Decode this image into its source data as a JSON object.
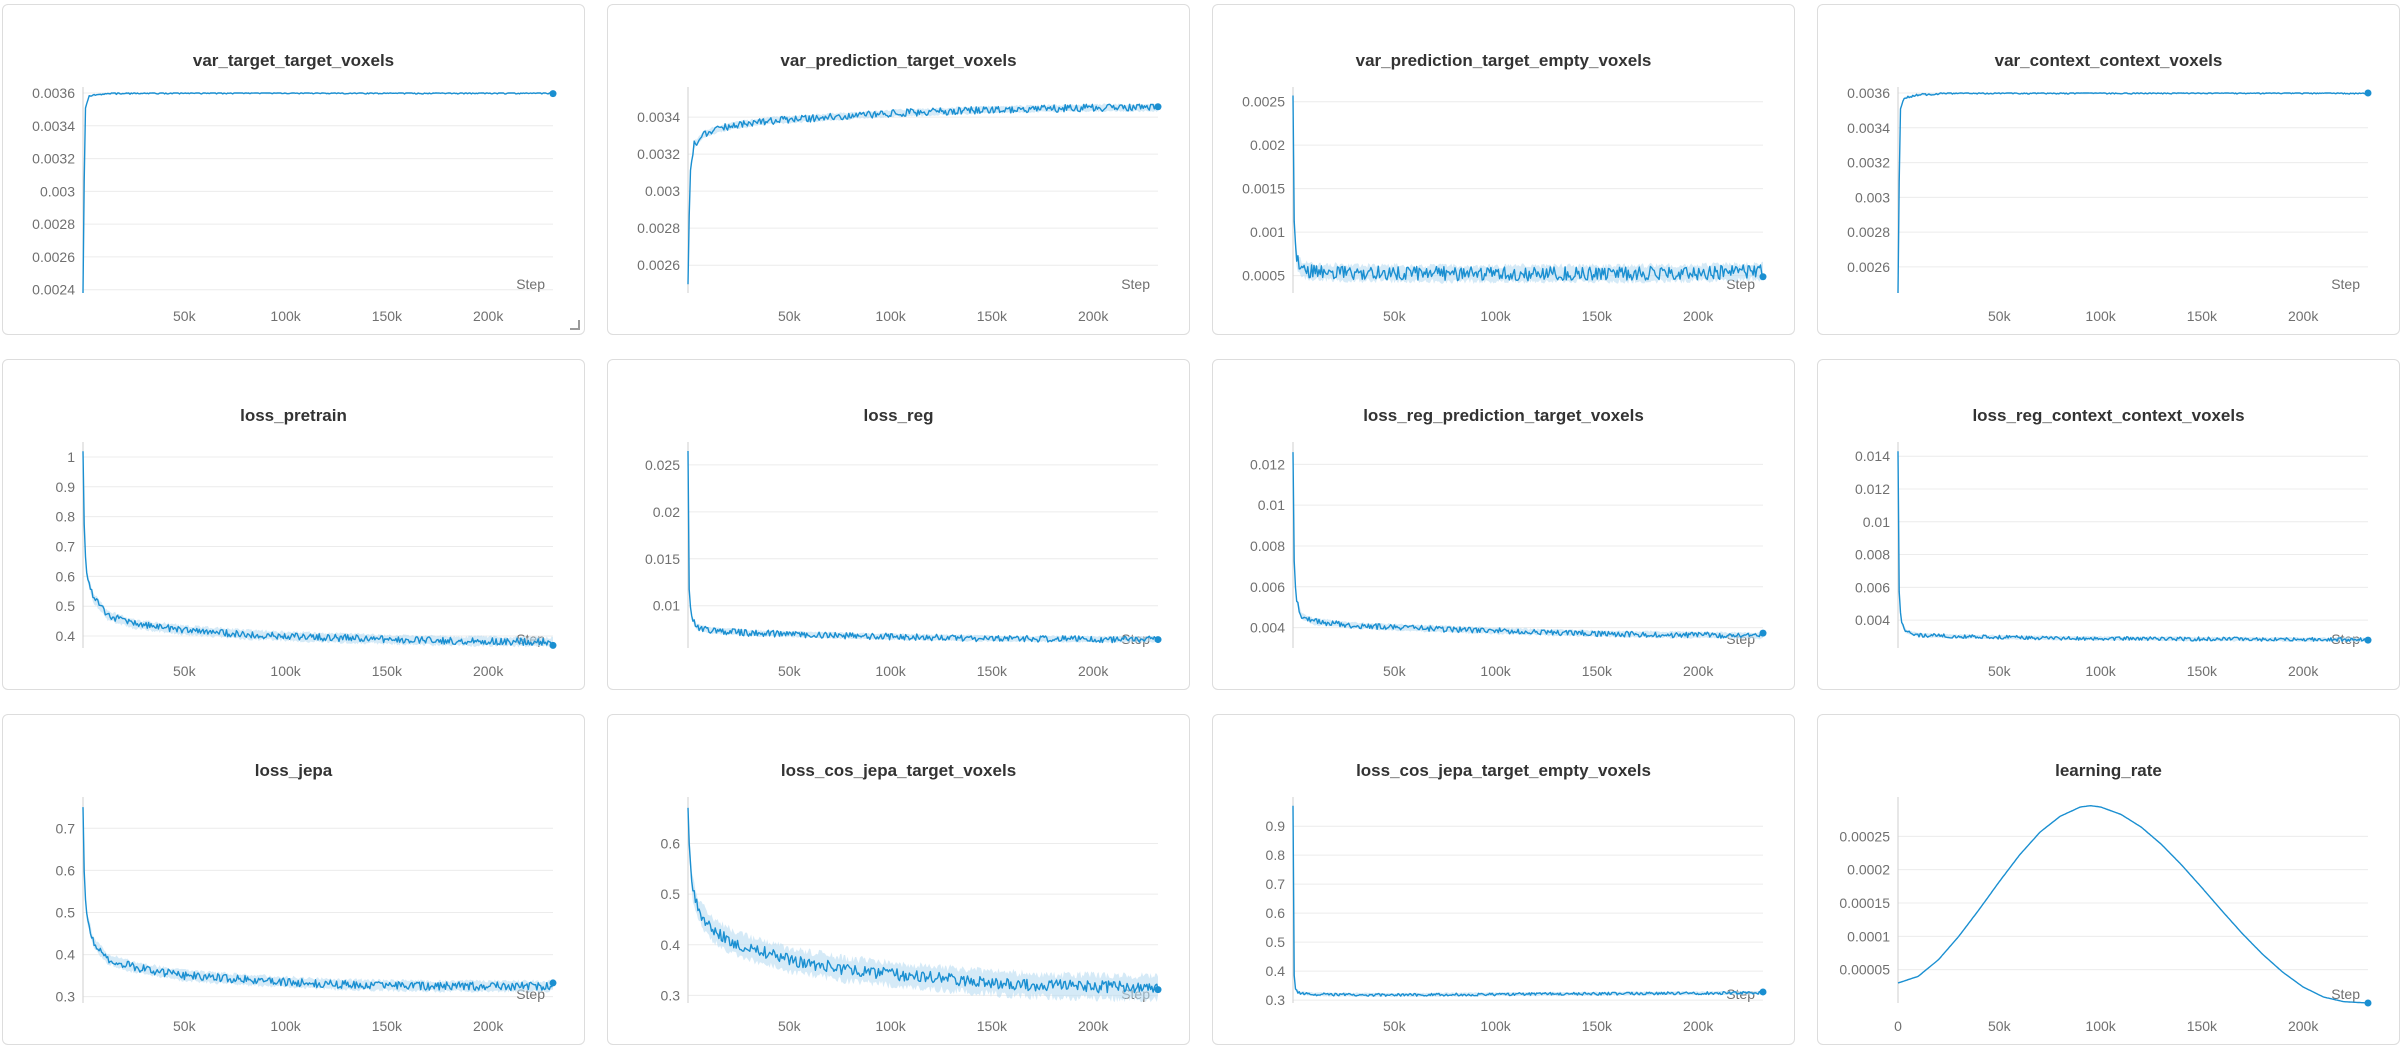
{
  "colors": {
    "line": "#1a8fd1",
    "band": "#b9dcf2",
    "grid": "#ececec",
    "axis": "#cfcfcf",
    "tick_text": "#707070"
  },
  "x_axis_label": "Step",
  "chart_data": [
    {
      "type": "line",
      "title": "var_target_target_voxels",
      "xlabel": "Step",
      "xlim": [
        0,
        232000
      ],
      "ylim": [
        0.00238,
        0.0036
      ],
      "x_ticks": [
        50000,
        100000,
        150000,
        200000
      ],
      "x_tick_labels": [
        "50k",
        "100k",
        "150k",
        "200k"
      ],
      "y_ticks": [
        0.0024,
        0.0026,
        0.0028,
        0.003,
        0.0032,
        0.0034,
        0.0036
      ],
      "y_tick_labels": [
        "0.0024",
        "0.0026",
        "0.0028",
        "0.003",
        "0.0032",
        "0.0034",
        "0.0036"
      ],
      "series": [
        {
          "x": [
            0,
            1000,
            3000,
            10000,
            30000,
            60000,
            100000,
            150000,
            200000,
            232000
          ],
          "y": [
            0.00238,
            0.0035,
            0.00358,
            0.003595,
            0.0036,
            0.0036,
            0.0036,
            0.0036,
            0.0036,
            0.0036
          ],
          "noise": 6e-06,
          "band": 4e-06
        }
      ]
    },
    {
      "type": "line",
      "title": "var_prediction_target_voxels",
      "xlabel": "Step",
      "xlim": [
        0,
        232000
      ],
      "ylim": [
        0.00245,
        0.00353
      ],
      "x_ticks": [
        50000,
        100000,
        150000,
        200000
      ],
      "x_tick_labels": [
        "50k",
        "100k",
        "150k",
        "200k"
      ],
      "y_ticks": [
        0.0026,
        0.0028,
        0.003,
        0.0032,
        0.0034
      ],
      "y_tick_labels": [
        "0.0026",
        "0.0028",
        "0.003",
        "0.0032",
        "0.0034"
      ],
      "series": [
        {
          "x": [
            0,
            1000,
            3000,
            8000,
            20000,
            40000,
            70000,
            100000,
            150000,
            200000,
            232000
          ],
          "y": [
            0.0025,
            0.0031,
            0.00325,
            0.00331,
            0.00335,
            0.00338,
            0.0034,
            0.00342,
            0.00344,
            0.00345,
            0.00345
          ],
          "noise": 2e-05,
          "band": 1.2e-05
        }
      ]
    },
    {
      "type": "line",
      "title": "var_prediction_target_empty_voxels",
      "xlabel": "Step",
      "xlim": [
        0,
        232000
      ],
      "ylim": [
        0.0003,
        0.0026
      ],
      "x_ticks": [
        50000,
        100000,
        150000,
        200000
      ],
      "x_tick_labels": [
        "50k",
        "100k",
        "150k",
        "200k"
      ],
      "y_ticks": [
        0.0005,
        0.001,
        0.0015,
        0.002,
        0.0025
      ],
      "y_tick_labels": [
        "0.0005",
        "0.001",
        "0.0015",
        "0.002",
        "0.0025"
      ],
      "series": [
        {
          "x": [
            0,
            500,
            1500,
            4000,
            10000,
            30000,
            100000,
            200000,
            232000
          ],
          "y": [
            0.00258,
            0.0012,
            0.0007,
            0.00058,
            0.00054,
            0.00053,
            0.00052,
            0.00053,
            0.00055
          ],
          "noise": 8e-05,
          "band": 6e-05
        }
      ]
    },
    {
      "type": "line",
      "title": "var_context_context_voxels",
      "xlabel": "Step",
      "xlim": [
        0,
        232000
      ],
      "ylim": [
        0.00245,
        0.0036
      ],
      "x_ticks": [
        50000,
        100000,
        150000,
        200000
      ],
      "x_tick_labels": [
        "50k",
        "100k",
        "150k",
        "200k"
      ],
      "y_ticks": [
        0.0026,
        0.0028,
        0.003,
        0.0032,
        0.0034,
        0.0036
      ],
      "y_tick_labels": [
        "0.0026",
        "0.0028",
        "0.003",
        "0.0032",
        "0.0034",
        "0.0036"
      ],
      "series": [
        {
          "x": [
            0,
            1000,
            3000,
            10000,
            30000,
            60000,
            100000,
            150000,
            200000,
            232000
          ],
          "y": [
            0.00245,
            0.0035,
            0.00357,
            0.00359,
            0.0036,
            0.0036,
            0.0036,
            0.0036,
            0.0036,
            0.0036
          ],
          "noise": 6e-06,
          "band": 4e-06
        }
      ]
    },
    {
      "type": "line",
      "title": "loss_pretrain",
      "xlabel": "Step",
      "xlim": [
        0,
        232000
      ],
      "ylim": [
        0.36,
        1.03
      ],
      "x_ticks": [
        50000,
        100000,
        150000,
        200000
      ],
      "x_tick_labels": [
        "50k",
        "100k",
        "150k",
        "200k"
      ],
      "y_ticks": [
        0.4,
        0.5,
        0.6,
        0.7,
        0.8,
        0.9,
        1
      ],
      "y_tick_labels": [
        "0.4",
        "0.5",
        "0.6",
        "0.7",
        "0.8",
        "0.9",
        "1"
      ],
      "series": [
        {
          "x": [
            0,
            800,
            2000,
            5000,
            12000,
            25000,
            50000,
            80000,
            120000,
            170000,
            232000
          ],
          "y": [
            1.02,
            0.7,
            0.6,
            0.53,
            0.47,
            0.44,
            0.42,
            0.405,
            0.395,
            0.385,
            0.38
          ],
          "noise": 0.012,
          "band": 0.01
        }
      ]
    },
    {
      "type": "line",
      "title": "loss_reg",
      "xlabel": "Step",
      "xlim": [
        0,
        232000
      ],
      "ylim": [
        0.0055,
        0.0268
      ],
      "x_ticks": [
        50000,
        100000,
        150000,
        200000
      ],
      "x_tick_labels": [
        "50k",
        "100k",
        "150k",
        "200k"
      ],
      "y_ticks": [
        0.01,
        0.015,
        0.02,
        0.025
      ],
      "y_tick_labels": [
        "0.01",
        "0.015",
        "0.02",
        "0.025"
      ],
      "series": [
        {
          "x": [
            0,
            500,
            1500,
            4000,
            10000,
            30000,
            80000,
            150000,
            232000
          ],
          "y": [
            0.0265,
            0.012,
            0.009,
            0.0078,
            0.0074,
            0.0071,
            0.0068,
            0.0065,
            0.0064
          ],
          "noise": 0.00035,
          "band": 0.0002
        }
      ]
    },
    {
      "type": "line",
      "title": "loss_reg_prediction_target_voxels",
      "xlabel": "Step",
      "xlim": [
        0,
        232000
      ],
      "ylim": [
        0.003,
        0.0128
      ],
      "x_ticks": [
        50000,
        100000,
        150000,
        200000
      ],
      "x_tick_labels": [
        "50k",
        "100k",
        "150k",
        "200k"
      ],
      "y_ticks": [
        0.004,
        0.006,
        0.008,
        0.01,
        0.012
      ],
      "y_tick_labels": [
        "0.004",
        "0.006",
        "0.008",
        "0.01",
        "0.012"
      ],
      "series": [
        {
          "x": [
            0,
            500,
            1500,
            4000,
            10000,
            30000,
            80000,
            150000,
            232000
          ],
          "y": [
            0.0126,
            0.0075,
            0.0054,
            0.0046,
            0.0043,
            0.0041,
            0.0039,
            0.0037,
            0.0036
          ],
          "noise": 0.00014,
          "band": 0.0001
        }
      ]
    },
    {
      "type": "line",
      "title": "loss_reg_context_context_voxels",
      "xlabel": "Step",
      "xlim": [
        0,
        232000
      ],
      "ylim": [
        0.0023,
        0.0145
      ],
      "x_ticks": [
        50000,
        100000,
        150000,
        200000
      ],
      "x_tick_labels": [
        "50k",
        "100k",
        "150k",
        "200k"
      ],
      "y_ticks": [
        0.004,
        0.006,
        0.008,
        0.01,
        0.012,
        0.014
      ],
      "y_tick_labels": [
        "0.004",
        "0.006",
        "0.008",
        "0.01",
        "0.012",
        "0.014"
      ],
      "series": [
        {
          "x": [
            0,
            500,
            1500,
            4000,
            10000,
            30000,
            80000,
            150000,
            232000
          ],
          "y": [
            0.0143,
            0.006,
            0.0039,
            0.0033,
            0.0031,
            0.003,
            0.0029,
            0.00285,
            0.0028
          ],
          "noise": 0.00012,
          "band": 8e-05
        }
      ]
    },
    {
      "type": "line",
      "title": "loss_jepa",
      "xlabel": "Step",
      "xlim": [
        0,
        232000
      ],
      "ylim": [
        0.285,
        0.76
      ],
      "x_ticks": [
        50000,
        100000,
        150000,
        200000
      ],
      "x_tick_labels": [
        "50k",
        "100k",
        "150k",
        "200k"
      ],
      "y_ticks": [
        0.3,
        0.4,
        0.5,
        0.6,
        0.7
      ],
      "y_tick_labels": [
        "0.3",
        "0.4",
        "0.5",
        "0.6",
        "0.7"
      ],
      "series": [
        {
          "x": [
            0,
            800,
            2000,
            5000,
            12000,
            25000,
            50000,
            80000,
            120000,
            170000,
            232000
          ],
          "y": [
            0.75,
            0.55,
            0.49,
            0.43,
            0.39,
            0.37,
            0.35,
            0.34,
            0.33,
            0.325,
            0.325
          ],
          "noise": 0.01,
          "band": 0.008
        }
      ]
    },
    {
      "type": "line",
      "title": "loss_cos_jepa_target_voxels",
      "xlabel": "Step",
      "xlim": [
        0,
        232000
      ],
      "ylim": [
        0.285,
        0.68
      ],
      "x_ticks": [
        50000,
        100000,
        150000,
        200000
      ],
      "x_tick_labels": [
        "50k",
        "100k",
        "150k",
        "200k"
      ],
      "y_ticks": [
        0.3,
        0.4,
        0.5,
        0.6
      ],
      "y_tick_labels": [
        "0.3",
        "0.4",
        "0.5",
        "0.6"
      ],
      "series": [
        {
          "x": [
            0,
            800,
            2000,
            5000,
            12000,
            25000,
            50000,
            80000,
            120000,
            170000,
            232000
          ],
          "y": [
            0.67,
            0.58,
            0.52,
            0.47,
            0.43,
            0.4,
            0.37,
            0.35,
            0.335,
            0.32,
            0.315
          ],
          "noise": 0.012,
          "band": 0.015
        }
      ]
    },
    {
      "type": "line",
      "title": "loss_cos_jepa_target_empty_voxels",
      "xlabel": "Step",
      "xlim": [
        0,
        232000
      ],
      "ylim": [
        0.29,
        0.98
      ],
      "x_ticks": [
        50000,
        100000,
        150000,
        200000
      ],
      "x_tick_labels": [
        "50k",
        "100k",
        "150k",
        "200k"
      ],
      "y_ticks": [
        0.3,
        0.4,
        0.5,
        0.6,
        0.7,
        0.8,
        0.9
      ],
      "y_tick_labels": [
        "0.3",
        "0.4",
        "0.5",
        "0.6",
        "0.7",
        "0.8",
        "0.9"
      ],
      "series": [
        {
          "x": [
            0,
            300,
            1000,
            3000,
            10000,
            50000,
            150000,
            232000
          ],
          "y": [
            0.97,
            0.42,
            0.34,
            0.325,
            0.32,
            0.318,
            0.322,
            0.325
          ],
          "noise": 0.005,
          "band": 0.004
        }
      ]
    },
    {
      "type": "line",
      "title": "learning_rate",
      "xlabel": "Step",
      "xlim": [
        0,
        232000
      ],
      "ylim": [
        0,
        0.0003
      ],
      "x_ticks": [
        0,
        50000,
        100000,
        150000,
        200000
      ],
      "x_tick_labels": [
        "0",
        "50k",
        "100k",
        "150k",
        "200k"
      ],
      "y_ticks": [
        5e-05,
        0.0001,
        0.00015,
        0.0002,
        0.00025
      ],
      "y_tick_labels": [
        "0.00005",
        "0.0001",
        "0.00015",
        "0.0002",
        "0.00025"
      ],
      "series": [
        {
          "x": [
            0,
            10000,
            20000,
            30000,
            40000,
            50000,
            60000,
            70000,
            80000,
            90000,
            95000,
            100000,
            110000,
            120000,
            130000,
            140000,
            150000,
            160000,
            170000,
            180000,
            190000,
            200000,
            210000,
            220000,
            232000
          ],
          "y": [
            3e-05,
            4e-05,
            6.5e-05,
            0.0001,
            0.00014,
            0.000182,
            0.000222,
            0.000256,
            0.00028,
            0.000294,
            0.000296,
            0.000294,
            0.000283,
            0.000264,
            0.000238,
            0.000207,
            0.000173,
            0.000138,
            0.000104,
            7.3e-05,
            4.6e-05,
            2.4e-05,
            9e-06,
            2e-06,
            0
          ],
          "noise": 0,
          "band": 0
        }
      ]
    }
  ]
}
